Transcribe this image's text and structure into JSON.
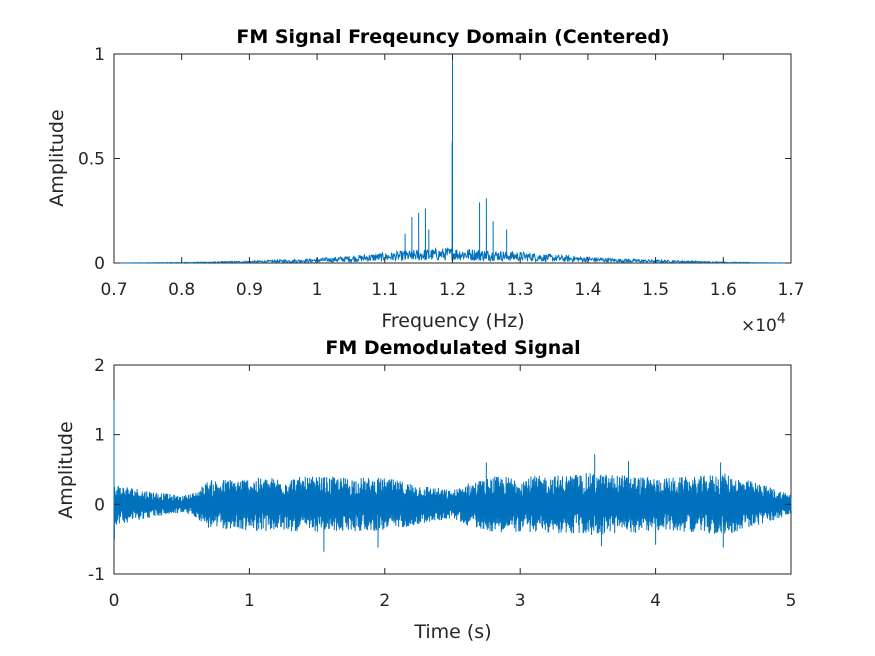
{
  "colors": {
    "series": "#0072BD",
    "axis": "#262626",
    "background": "#ffffff"
  },
  "chart_data": [
    {
      "type": "line",
      "title": "FM Signal Freqeuncy Domain (Centered)",
      "xlabel": "Frequency (Hz)",
      "ylabel": "Amplitude",
      "xlim": [
        7000,
        17000
      ],
      "ylim": [
        0,
        1
      ],
      "x_ticks": [
        7000,
        8000,
        9000,
        10000,
        11000,
        12000,
        13000,
        14000,
        15000,
        16000,
        17000
      ],
      "x_tick_labels": [
        "0.7",
        "0.8",
        "0.9",
        "1",
        "1.1",
        "1.2",
        "1.3",
        "1.4",
        "1.5",
        "1.6",
        "1.7"
      ],
      "x_exponent_base": "×10",
      "x_exponent_power": "4",
      "y_ticks": [
        0,
        0.5,
        1
      ],
      "y_tick_labels": [
        "0",
        "0.5",
        "1"
      ],
      "grid": false,
      "series": [
        {
          "envelope": {
            "x": [
              7000,
              8000,
              8500,
              9000,
              9500,
              10000,
              10500,
              11000,
              11500,
              12000,
              12500,
              13000,
              13500,
              14000,
              14500,
              15000,
              15500,
              16000,
              16500,
              17000
            ],
            "y": [
              0.0,
              0.003,
              0.006,
              0.01,
              0.015,
              0.022,
              0.035,
              0.05,
              0.065,
              0.075,
              0.065,
              0.055,
              0.04,
              0.03,
              0.02,
              0.015,
              0.01,
              0.005,
              0.002,
              0.0
            ]
          },
          "peaks": {
            "x": [
              12000,
              11995,
              11400,
              11500,
              11600,
              11650,
              12400,
              12500,
              12600,
              11300,
              12800
            ],
            "y": [
              1.0,
              0.58,
              0.22,
              0.24,
              0.26,
              0.16,
              0.29,
              0.31,
              0.2,
              0.14,
              0.16
            ]
          }
        }
      ]
    },
    {
      "type": "line",
      "title": "FM Demodulated Signal",
      "xlabel": "Time (s)",
      "ylabel": "Amplitude",
      "xlim": [
        0,
        5
      ],
      "ylim": [
        -1,
        2
      ],
      "x_ticks": [
        0,
        1,
        2,
        3,
        4,
        5
      ],
      "x_tick_labels": [
        "0",
        "1",
        "2",
        "3",
        "4",
        "5"
      ],
      "y_ticks": [
        -1,
        0,
        1,
        2
      ],
      "y_tick_labels": [
        "-1",
        "0",
        "1",
        "2"
      ],
      "grid": false,
      "series": [
        {
          "envelope": {
            "x": [
              0,
              0.25,
              0.5,
              0.6,
              0.7,
              1.0,
              1.5,
              2.0,
              2.5,
              2.6,
              2.8,
              3.0,
              3.3,
              3.5,
              3.8,
              4.0,
              4.3,
              4.5,
              4.8,
              5.0
            ],
            "y": [
              0.3,
              0.2,
              0.12,
              0.18,
              0.35,
              0.38,
              0.4,
              0.38,
              0.2,
              0.3,
              0.4,
              0.4,
              0.42,
              0.45,
              0.42,
              0.38,
              0.4,
              0.45,
              0.28,
              0.15
            ]
          },
          "spikes": {
            "x": [
              0.0,
              0.003,
              1.55,
              1.95,
              2.75,
              3.55,
              3.6,
              3.8,
              4.0,
              4.48,
              4.5
            ],
            "y": [
              1.5,
              -0.5,
              -0.68,
              -0.62,
              0.6,
              0.72,
              -0.6,
              0.62,
              -0.58,
              0.6,
              -0.62
            ]
          }
        }
      ]
    }
  ]
}
